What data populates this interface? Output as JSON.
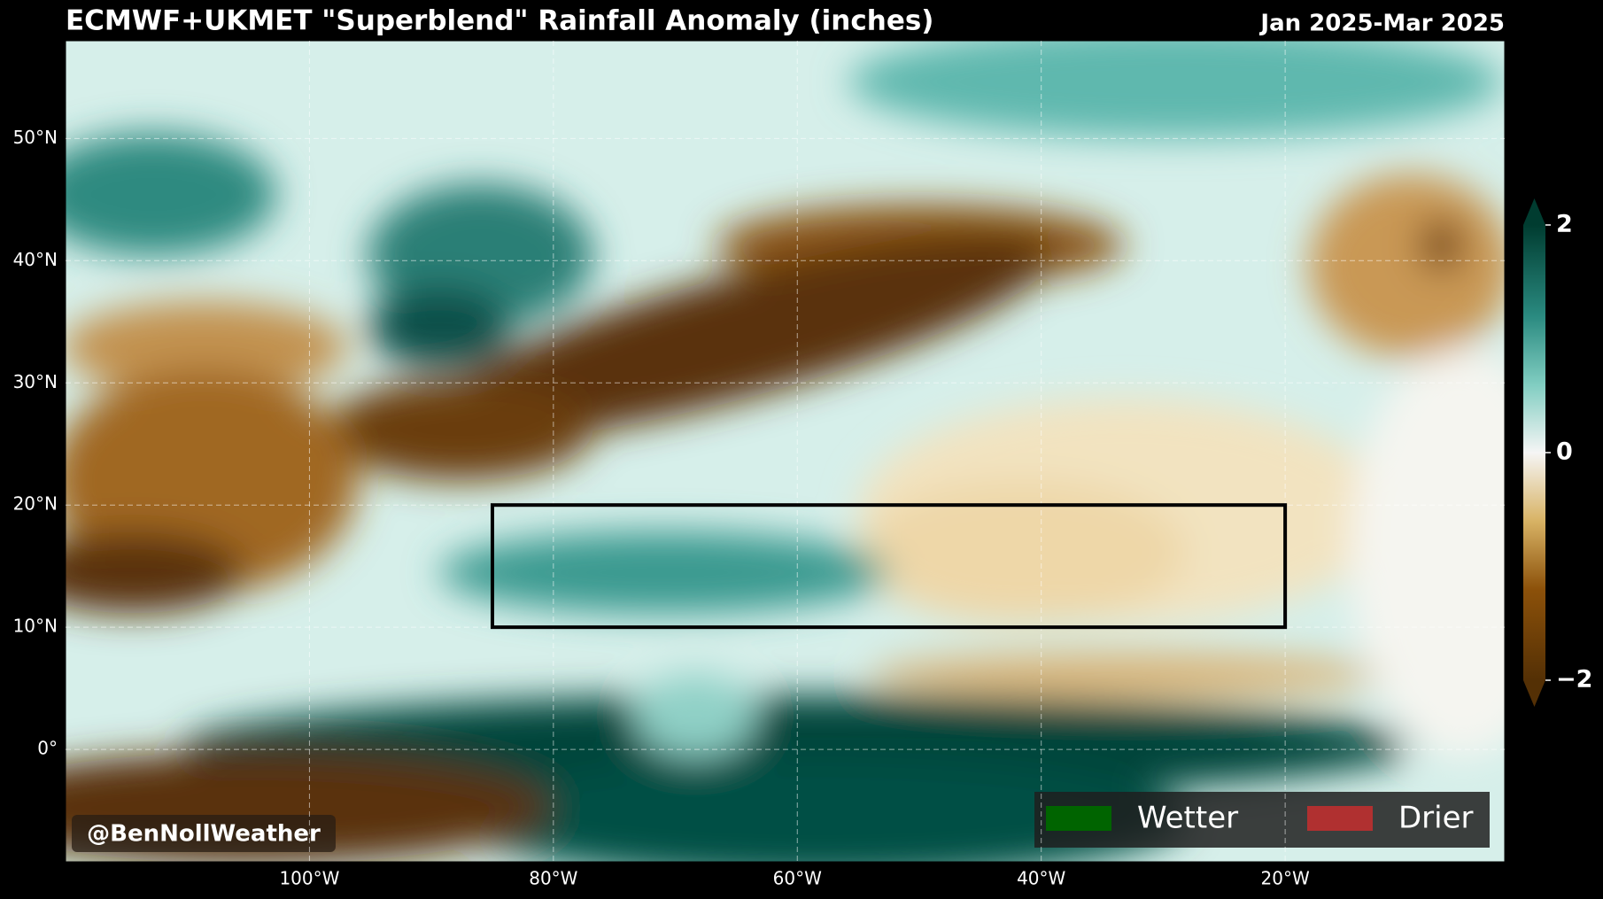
{
  "map": {
    "title": "ECMWF+UKMET \"Superblend\" Rainfall Anomaly (inches)",
    "period": "Jan 2025-Mar 2025",
    "xlim": [
      -120,
      -2
    ],
    "ylim": [
      -9.2,
      58
    ],
    "xticks": [
      {
        "value": -100,
        "label": "100°W"
      },
      {
        "value": -80,
        "label": "80°W"
      },
      {
        "value": -60,
        "label": "60°W"
      },
      {
        "value": -40,
        "label": "40°W"
      },
      {
        "value": -20,
        "label": "20°W"
      }
    ],
    "yticks": [
      {
        "value": 0,
        "label": "0°"
      },
      {
        "value": 10,
        "label": "10°N"
      },
      {
        "value": 20,
        "label": "20°N"
      },
      {
        "value": 30,
        "label": "30°N"
      },
      {
        "value": 40,
        "label": "40°N"
      },
      {
        "value": 50,
        "label": "50°N"
      }
    ],
    "grid": true,
    "box": {
      "lon": [
        -85,
        -20
      ],
      "lat": [
        10,
        20
      ]
    },
    "colorbar": {
      "lim": [
        -2,
        2
      ],
      "ticks": [
        {
          "value": 2,
          "label": "2"
        },
        {
          "value": 0,
          "label": "0"
        },
        {
          "value": -2,
          "label": "−2"
        }
      ]
    },
    "legend": [
      {
        "name": "Wetter",
        "color": "#006400"
      },
      {
        "name": "Drier",
        "color": "#b03030"
      }
    ],
    "credit": "@BenNollWeather"
  }
}
